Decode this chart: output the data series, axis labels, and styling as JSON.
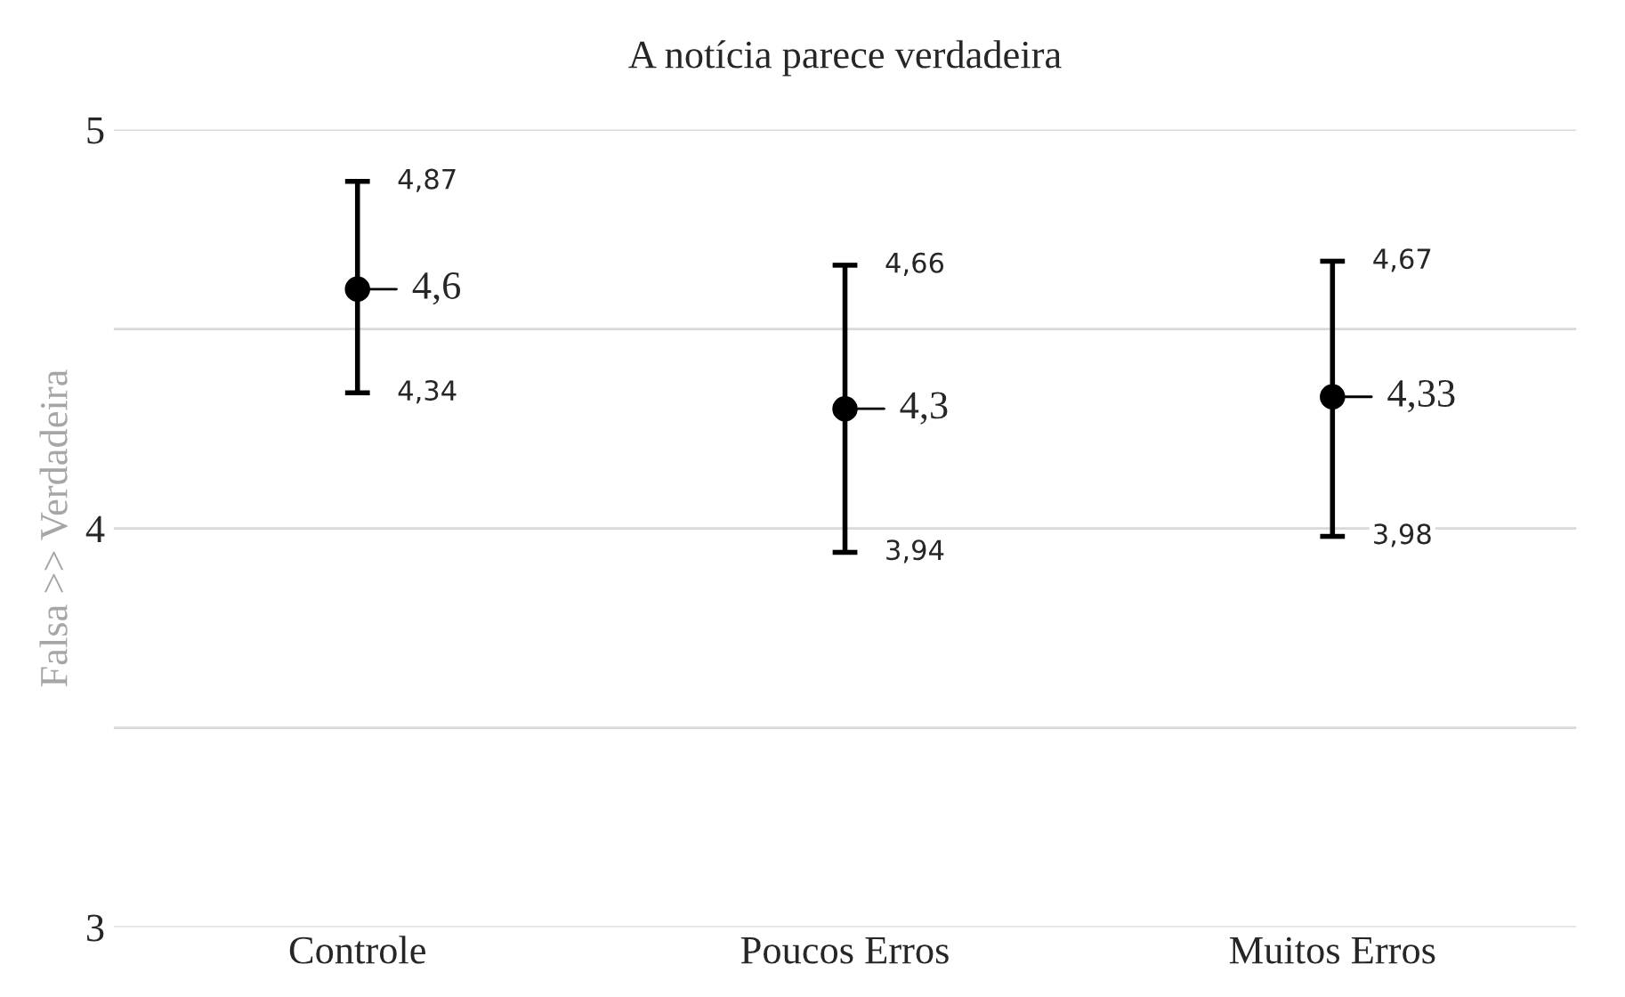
{
  "chart_data": {
    "type": "scatter",
    "title": "A notícia parece verdadeira",
    "ylabel": "Falsa >> Verdadeira",
    "categories": [
      "Controle",
      "Poucos Erros",
      "Muitos Erros"
    ],
    "values": [
      4.6,
      4.3,
      4.33
    ],
    "value_labels": [
      "4,6",
      "4,3",
      "4,33"
    ],
    "errors": [
      [
        4.34,
        4.87
      ],
      [
        3.94,
        4.66
      ],
      [
        3.98,
        4.67
      ]
    ],
    "color": "#000000",
    "marker": "circle",
    "ylim": [
      3,
      5
    ],
    "yticks": [
      3,
      {
        "value": 3.5,
        "label": null
      },
      4,
      {
        "value": 4.5,
        "label": null
      },
      5
    ],
    "grid": "y",
    "legend": false,
    "annotations": [
      {
        "text": "4,87",
        "x": "Controle",
        "y": 4.87
      },
      {
        "text": "4,34",
        "x": "Controle",
        "y": 4.34
      },
      {
        "text": "4,66",
        "x": "Poucos Erros",
        "y": 4.66
      },
      {
        "text": "3,94",
        "x": "Poucos Erros",
        "y": 3.94
      },
      {
        "text": "4,67",
        "x": "Muitos Erros",
        "y": 4.67
      },
      {
        "text": "3,98",
        "x": "Muitos Erros",
        "y": 3.98
      }
    ]
  }
}
